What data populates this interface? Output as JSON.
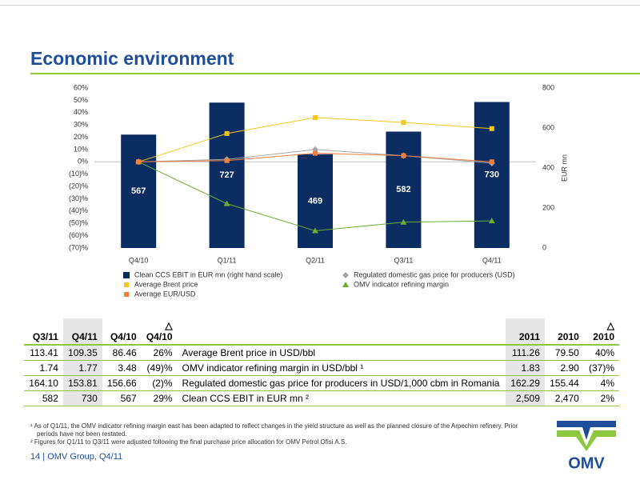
{
  "header": {
    "title": "Economic environment"
  },
  "chart_data": {
    "type": "bar",
    "categories": [
      "Q4/10",
      "Q1/11",
      "Q2/11",
      "Q3/11",
      "Q4/11"
    ],
    "series": [
      {
        "name": "Clean CCS EBIT in EUR mn (right hand scale)",
        "type": "bar",
        "axis": "y2",
        "color": "#0b2d62",
        "values": [
          567,
          727,
          469,
          582,
          730
        ]
      },
      {
        "name": "Regulated domestic gas price for producers (USD)",
        "type": "line",
        "marker": "diamond",
        "color": "#a6a6a6",
        "values": [
          0,
          2,
          10,
          5,
          -1
        ]
      },
      {
        "name": "Average Brent price",
        "type": "line",
        "marker": "square",
        "color": "#f5c518",
        "values": [
          0,
          23,
          36,
          32,
          27
        ]
      },
      {
        "name": "OMV indicator refining margin",
        "type": "line",
        "marker": "triangle",
        "color": "#6aae2e",
        "values": [
          0,
          -34,
          -56,
          -49,
          -48
        ]
      },
      {
        "name": "Average EUR/USD",
        "type": "line",
        "marker": "square",
        "color": "#f07f3c",
        "values": [
          0,
          1,
          7,
          5,
          0
        ]
      }
    ],
    "ylim": [
      -70,
      60
    ],
    "yticks": [
      {
        "value": 60,
        "label": "60%"
      },
      {
        "value": 50,
        "label": "50%"
      },
      {
        "value": 40,
        "label": "40%"
      },
      {
        "value": 30,
        "label": "30%"
      },
      {
        "value": 20,
        "label": "20%"
      },
      {
        "value": 10,
        "label": "10%"
      },
      {
        "value": 0,
        "label": "0%"
      },
      {
        "value": -10,
        "label": "(10)%"
      },
      {
        "value": -20,
        "label": "(20)%"
      },
      {
        "value": -30,
        "label": "(30)%"
      },
      {
        "value": -40,
        "label": "(40)%"
      },
      {
        "value": -50,
        "label": "(50)%"
      },
      {
        "value": -60,
        "label": "(60)%"
      },
      {
        "value": -70,
        "label": "(70)%"
      }
    ],
    "y2lim": [
      0,
      800
    ],
    "y2ticks": [
      0,
      200,
      400,
      600,
      800
    ],
    "y2label": "EUR mn",
    "grid": false
  },
  "table": {
    "header": [
      "Q3/11",
      "Q4/11",
      "Q4/10",
      "△\nQ4/10",
      "2011",
      "2010",
      "△\n2010"
    ],
    "rows": [
      [
        "113.41",
        "109.35",
        "86.46",
        "26%",
        "Average Brent price in USD/bbl",
        "111.26",
        "79.50",
        "40%"
      ],
      [
        "1.74",
        "1.77",
        "3.48",
        "(49)%",
        "OMV indicator refining margin in USD/bbl ¹",
        "1.83",
        "2.90",
        "(37)%"
      ],
      [
        "164.10",
        "153.81",
        "156.66",
        "(2)%",
        "Regulated domestic gas price for producers in USD/1,000 cbm in Romania",
        "162.29",
        "155.44",
        "4%"
      ],
      [
        "582",
        "730",
        "567",
        "29%",
        "Clean CCS EBIT in EUR mn ²",
        "2,509",
        "2,470",
        "2%"
      ]
    ]
  },
  "footnotes": [
    "¹ As of Q1/11, the OMV indicator refining margin east has been adapted to reflect changes in the yield structure as well as the planned closure of the Arpechim refinery. Prior periods have not been restated.",
    "² Figures for Q1/11 to Q3/11 were adjusted following the final purchase price allocation for OMV Petrol Ofisi A.S."
  ],
  "footer": {
    "text": "14 | OMV Group, Q4/11",
    "logo": "OMV"
  }
}
